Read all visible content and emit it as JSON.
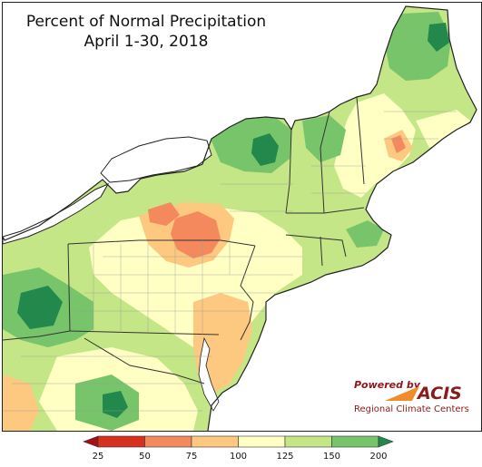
{
  "title": {
    "line1": "Percent of Normal Precipitation",
    "line2": "April 1-30, 2018"
  },
  "logo": {
    "powered_by": "Powered by",
    "name": "ACIS",
    "subtitle": "Regional Climate Centers"
  },
  "legend": {
    "ticks": [
      "25",
      "50",
      "75",
      "100",
      "125",
      "150",
      "200"
    ],
    "classes": [
      {
        "range": "<25",
        "color": "#a50f15"
      },
      {
        "range": "25-50",
        "color": "#d7301f"
      },
      {
        "range": "50-75",
        "color": "#f4895e"
      },
      {
        "range": "75-100",
        "color": "#fdc87f"
      },
      {
        "range": "100-125",
        "color": "#ffffc4"
      },
      {
        "range": "125-150",
        "color": "#c4e687"
      },
      {
        "range": "150-200",
        "color": "#78c46b"
      },
      {
        "range": ">200",
        "color": "#23884b"
      }
    ]
  },
  "colors": {
    "lake": "#ffffff",
    "land_base": "#c4e687",
    "boundary": "#555555"
  }
}
